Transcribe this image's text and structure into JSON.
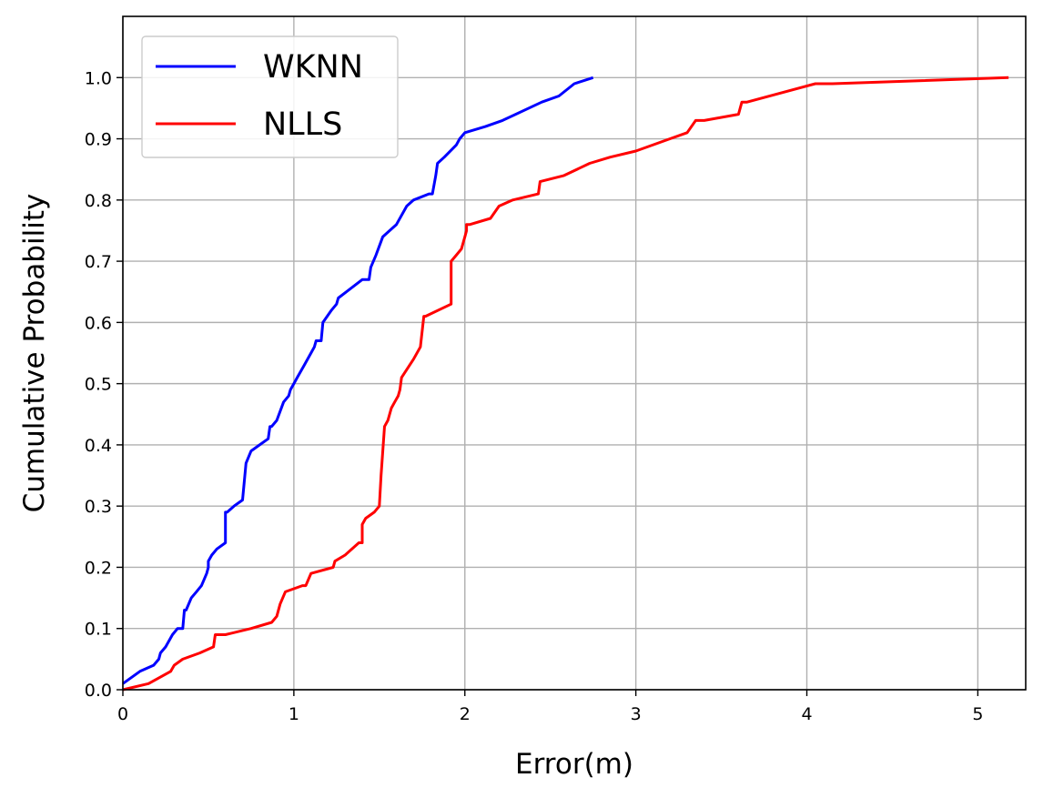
{
  "chart_data": {
    "type": "line",
    "title": "",
    "xlabel": "Error(m)",
    "ylabel": "Cumulative Probability",
    "xlim": [
      0,
      5.28
    ],
    "ylim": [
      0,
      1.1
    ],
    "xticks": [
      0,
      1,
      2,
      3,
      4,
      5
    ],
    "yticks": [
      0.0,
      0.1,
      0.2,
      0.3,
      0.4,
      0.5,
      0.6,
      0.7,
      0.8,
      0.9,
      1.0
    ],
    "xtick_labels": [
      "0",
      "1",
      "2",
      "3",
      "4",
      "5"
    ],
    "ytick_labels": [
      "0.0",
      "0.1",
      "0.2",
      "0.3",
      "0.4",
      "0.5",
      "0.6",
      "0.7",
      "0.8",
      "0.9",
      "1.0"
    ],
    "grid": true,
    "legend_position": "top-left",
    "series": [
      {
        "name": "WKNN",
        "color": "#0000ff",
        "x": [
          0,
          0.1,
          0.18,
          0.21,
          0.22,
          0.25,
          0.29,
          0.32,
          0.35,
          0.36,
          0.37,
          0.4,
          0.43,
          0.46,
          0.49,
          0.5,
          0.5,
          0.52,
          0.55,
          0.6,
          0.6,
          0.61,
          0.65,
          0.7,
          0.71,
          0.72,
          0.75,
          0.8,
          0.85,
          0.86,
          0.87,
          0.9,
          0.94,
          0.97,
          0.98,
          1.0,
          1.02,
          1.06,
          1.1,
          1.12,
          1.13,
          1.16,
          1.17,
          1.22,
          1.25,
          1.26,
          1.4,
          1.44,
          1.45,
          1.48,
          1.52,
          1.6,
          1.66,
          1.7,
          1.79,
          1.81,
          1.83,
          1.84,
          1.88,
          1.95,
          1.97,
          2.0,
          2.12,
          2.22,
          2.45,
          2.55,
          2.64,
          2.75
        ],
        "y": [
          0.01,
          0.03,
          0.04,
          0.05,
          0.06,
          0.07,
          0.09,
          0.1,
          0.1,
          0.13,
          0.13,
          0.15,
          0.16,
          0.17,
          0.19,
          0.2,
          0.21,
          0.22,
          0.23,
          0.24,
          0.29,
          0.29,
          0.3,
          0.31,
          0.34,
          0.37,
          0.39,
          0.4,
          0.41,
          0.43,
          0.43,
          0.44,
          0.47,
          0.48,
          0.49,
          0.5,
          0.51,
          0.53,
          0.55,
          0.56,
          0.57,
          0.57,
          0.6,
          0.62,
          0.63,
          0.64,
          0.67,
          0.67,
          0.69,
          0.71,
          0.74,
          0.76,
          0.79,
          0.8,
          0.81,
          0.81,
          0.84,
          0.86,
          0.87,
          0.89,
          0.9,
          0.91,
          0.92,
          0.93,
          0.96,
          0.97,
          0.99,
          1.0
        ]
      },
      {
        "name": "NLLS",
        "color": "#ff0000",
        "x": [
          0,
          0.15,
          0.28,
          0.3,
          0.35,
          0.45,
          0.53,
          0.54,
          0.6,
          0.75,
          0.87,
          0.9,
          0.92,
          0.95,
          1.05,
          1.07,
          1.1,
          1.23,
          1.24,
          1.3,
          1.38,
          1.4,
          1.4,
          1.42,
          1.47,
          1.5,
          1.51,
          1.53,
          1.55,
          1.57,
          1.57,
          1.59,
          1.61,
          1.62,
          1.63,
          1.7,
          1.74,
          1.76,
          1.77,
          1.92,
          1.92,
          1.95,
          1.98,
          2.0,
          2.01,
          2.01,
          2.03,
          2.15,
          2.2,
          2.28,
          2.43,
          2.44,
          2.58,
          2.73,
          2.85,
          3.0,
          3.2,
          3.3,
          3.35,
          3.4,
          3.6,
          3.62,
          3.65,
          4.05,
          4.15,
          5.18
        ],
        "y": [
          0.0,
          0.01,
          0.03,
          0.04,
          0.05,
          0.06,
          0.07,
          0.09,
          0.09,
          0.1,
          0.11,
          0.12,
          0.14,
          0.16,
          0.17,
          0.17,
          0.19,
          0.2,
          0.21,
          0.22,
          0.24,
          0.24,
          0.27,
          0.28,
          0.29,
          0.3,
          0.35,
          0.43,
          0.44,
          0.46,
          0.46,
          0.47,
          0.48,
          0.49,
          0.51,
          0.54,
          0.56,
          0.61,
          0.61,
          0.63,
          0.7,
          0.71,
          0.72,
          0.74,
          0.75,
          0.76,
          0.76,
          0.77,
          0.79,
          0.8,
          0.81,
          0.83,
          0.84,
          0.86,
          0.87,
          0.88,
          0.9,
          0.91,
          0.93,
          0.93,
          0.94,
          0.96,
          0.96,
          0.99,
          0.99,
          1.0
        ]
      }
    ]
  }
}
